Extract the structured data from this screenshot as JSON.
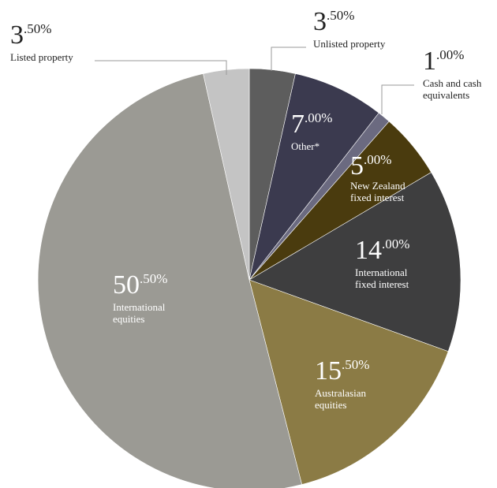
{
  "chart_data": {
    "type": "pie",
    "start_angle_deg": 0,
    "direction": "clockwise",
    "slices": [
      {
        "key": "unlisted_property",
        "whole": "3",
        "decimal": ".50%",
        "label_lines": [
          "Unlisted property"
        ],
        "value": 3.5,
        "color": "#5d5d5d",
        "label_color": "#222222"
      },
      {
        "key": "other",
        "whole": "7",
        "decimal": ".00%",
        "label_lines": [
          "Other*"
        ],
        "value": 7.0,
        "color": "#3b3a4f",
        "label_color": "#ffffff"
      },
      {
        "key": "cash",
        "whole": "1",
        "decimal": ".00%",
        "label_lines": [
          "Cash and cash",
          "equivalents"
        ],
        "value": 1.0,
        "color": "#6b6a80",
        "label_color": "#222222"
      },
      {
        "key": "nz_fixed_interest",
        "whole": "5",
        "decimal": ".00%",
        "label_lines": [
          "New Zealand",
          "fixed interest"
        ],
        "value": 5.0,
        "color": "#4a3b0e",
        "label_color": "#ffffff"
      },
      {
        "key": "intl_fixed_interest",
        "whole": "14",
        "decimal": ".00%",
        "label_lines": [
          "International",
          "fixed interest"
        ],
        "value": 14.0,
        "color": "#3e3e3f",
        "label_color": "#ffffff"
      },
      {
        "key": "australasian_equities",
        "whole": "15",
        "decimal": ".50%",
        "label_lines": [
          "Australasian",
          "equities"
        ],
        "value": 15.5,
        "color": "#8b7b45",
        "label_color": "#ffffff"
      },
      {
        "key": "intl_equities",
        "whole": "50",
        "decimal": ".50%",
        "label_lines": [
          "International",
          "equities"
        ],
        "value": 50.5,
        "color": "#9b9a94",
        "label_color": "#ffffff"
      },
      {
        "key": "listed_property",
        "whole": "3",
        "decimal": ".50%",
        "label_lines": [
          "Listed property"
        ],
        "value": 3.5,
        "color": "#c4c4c4",
        "label_color": "#222222"
      }
    ]
  }
}
